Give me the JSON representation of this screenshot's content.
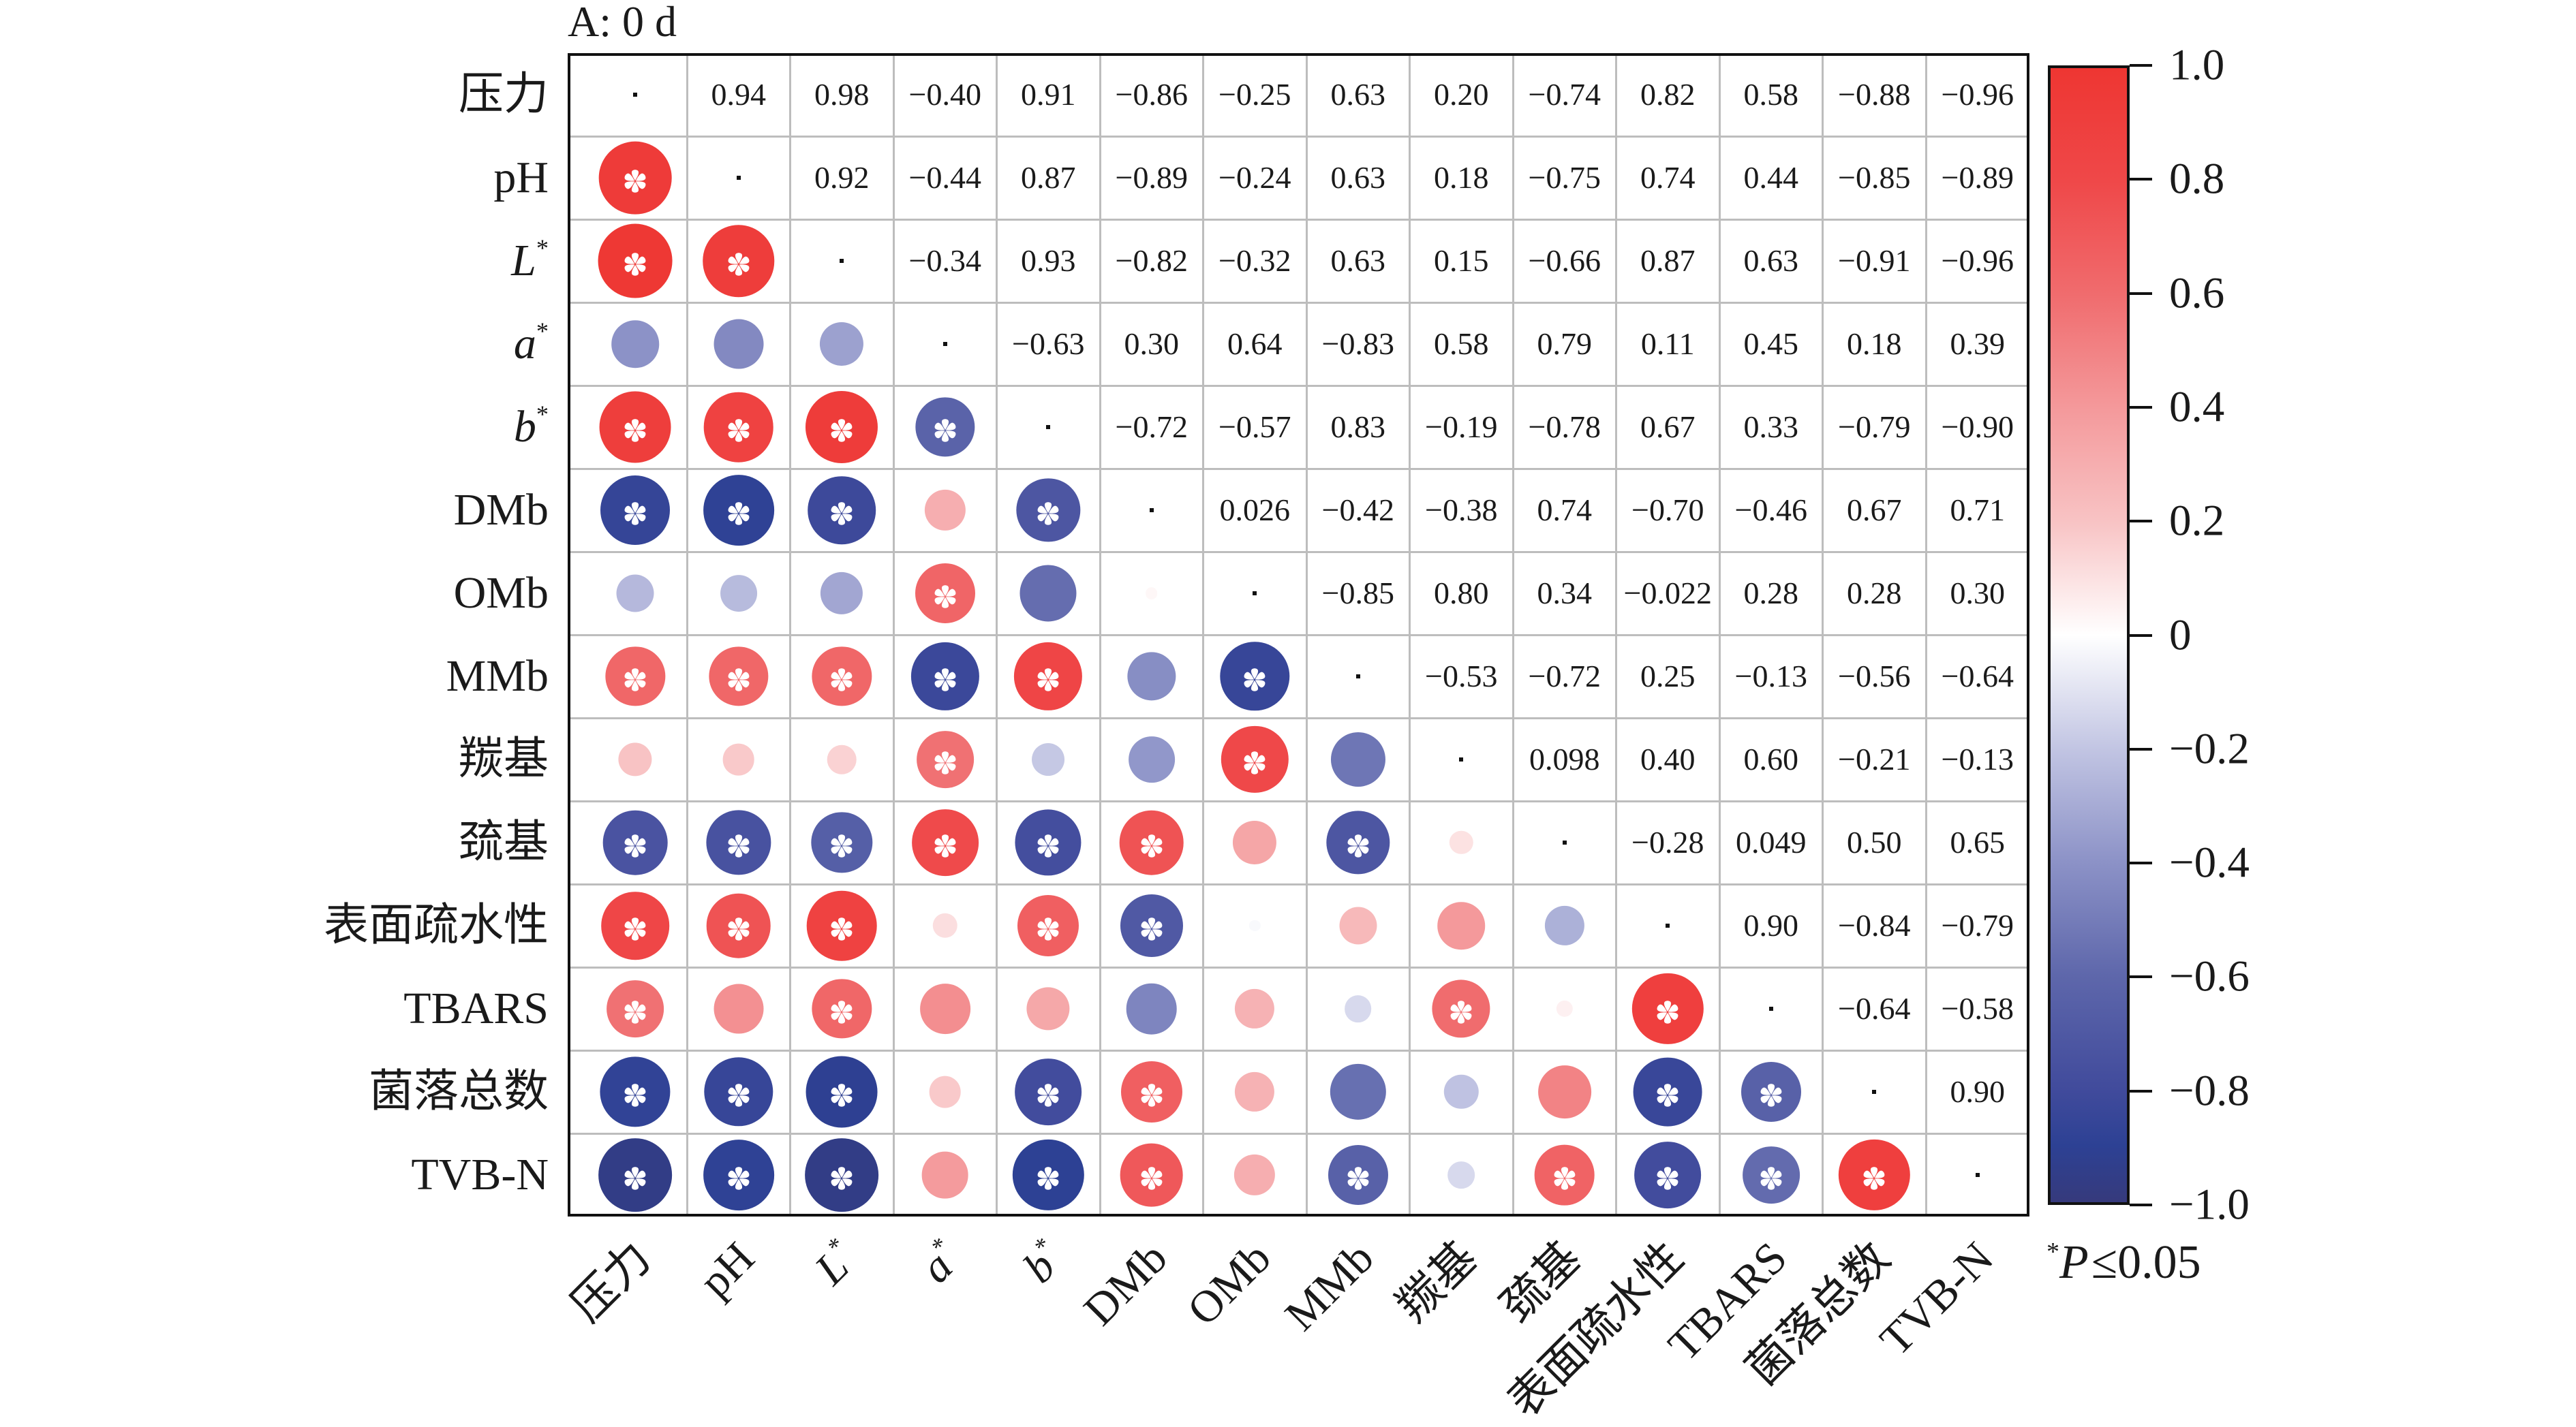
{
  "figure": {
    "panel_title": "A: 0 d",
    "legend": {
      "sup": "*",
      "p": "P",
      "text": "≤0.05"
    }
  },
  "chart_data": {
    "type": "heatmap",
    "title": "A: 0 d",
    "description": "Correlation matrix; lower triangle shown as circles (color and size by coefficient), upper triangle shows coefficient values, diagonal marked with a dot",
    "xlabel": "",
    "ylabel": "",
    "variables": [
      {
        "text": "压力"
      },
      {
        "text": "pH"
      },
      {
        "text": "L",
        "sup": "*",
        "italic": true
      },
      {
        "text": "a",
        "sup": "*",
        "italic": true
      },
      {
        "text": "b",
        "sup": "*",
        "italic": true
      },
      {
        "text": "DMb"
      },
      {
        "text": "OMb"
      },
      {
        "text": "MMb"
      },
      {
        "text": "羰基"
      },
      {
        "text": "巯基"
      },
      {
        "text": "表面疏水性"
      },
      {
        "text": "TBARS"
      },
      {
        "text": "菌落总数"
      },
      {
        "text": "TVB-N"
      }
    ],
    "upper_values": [
      [
        "0.94",
        "0.98",
        "−0.40",
        "0.91",
        "−0.86",
        "−0.25",
        "0.63",
        "0.20",
        "−0.74",
        "0.82",
        "0.58",
        "−0.88",
        "−0.96"
      ],
      [
        "0.92",
        "−0.44",
        "0.87",
        "−0.89",
        "−0.24",
        "0.63",
        "0.18",
        "−0.75",
        "0.74",
        "0.44",
        "−0.85",
        "−0.89"
      ],
      [
        "−0.34",
        "0.93",
        "−0.82",
        "−0.32",
        "0.63",
        "0.15",
        "−0.66",
        "0.87",
        "0.63",
        "−0.91",
        "−0.96"
      ],
      [
        "−0.63",
        "0.30",
        "0.64",
        "−0.83",
        "0.58",
        "0.79",
        "0.11",
        "0.45",
        "0.18",
        "0.39"
      ],
      [
        "−0.72",
        "−0.57",
        "0.83",
        "−0.19",
        "−0.78",
        "0.67",
        "0.33",
        "−0.79",
        "−0.90"
      ],
      [
        "0.026",
        "−0.42",
        "−0.38",
        "0.74",
        "−0.70",
        "−0.46",
        "0.67",
        "0.71"
      ],
      [
        "−0.85",
        "0.80",
        "0.34",
        "−0.022",
        "0.28",
        "0.28",
        "0.30"
      ],
      [
        "−0.53",
        "−0.72",
        "0.25",
        "−0.13",
        "−0.56",
        "−0.64"
      ],
      [
        "0.098",
        "0.40",
        "0.60",
        "−0.21",
        "−0.13"
      ],
      [
        "−0.28",
        "0.049",
        "0.50",
        "0.65"
      ],
      [
        "0.90",
        "−0.84",
        "−0.79"
      ],
      [
        "−0.64",
        "−0.58"
      ],
      [
        "0.90"
      ],
      []
    ],
    "significant_lower": [
      [],
      [
        1
      ],
      [
        1,
        1
      ],
      [
        0,
        0,
        0
      ],
      [
        1,
        1,
        1,
        1
      ],
      [
        1,
        1,
        1,
        0,
        1
      ],
      [
        0,
        0,
        0,
        1,
        0,
        0
      ],
      [
        1,
        1,
        1,
        1,
        1,
        0,
        1
      ],
      [
        0,
        0,
        0,
        1,
        0,
        0,
        1,
        0
      ],
      [
        1,
        1,
        1,
        1,
        1,
        1,
        0,
        1,
        0
      ],
      [
        1,
        1,
        1,
        0,
        1,
        1,
        0,
        0,
        0,
        0
      ],
      [
        1,
        0,
        1,
        0,
        0,
        0,
        0,
        0,
        1,
        0,
        1
      ],
      [
        1,
        1,
        1,
        0,
        1,
        1,
        0,
        0,
        0,
        0,
        1,
        1
      ],
      [
        1,
        1,
        1,
        0,
        1,
        1,
        0,
        1,
        0,
        1,
        1,
        1,
        1
      ]
    ],
    "diagonal_marker": "·",
    "significance_note": "*P≤0.05",
    "marker_size_rule": "circle area proportional to |r|",
    "colorbar": {
      "range": [
        -1.0,
        1.0
      ],
      "tick_values": [
        1.0,
        0.8,
        0.6,
        0.4,
        0.2,
        0,
        -0.2,
        -0.4,
        -0.6,
        -0.8,
        -1.0
      ],
      "tick_labels": [
        "1.0",
        "0.8",
        "0.6",
        "0.4",
        "0.2",
        "0",
        "−0.2",
        "−0.4",
        "−0.6",
        "−0.8",
        "−1.0"
      ],
      "placement": "right"
    },
    "colormap": [
      {
        "value": -1.0,
        "color": "#363A7C"
      },
      {
        "value": -0.9,
        "color": "#2D4194"
      },
      {
        "value": -0.8,
        "color": "#414B9C"
      },
      {
        "value": -0.6,
        "color": "#5E67AB"
      },
      {
        "value": -0.4,
        "color": "#8C92C7"
      },
      {
        "value": -0.2,
        "color": "#C2C5E3"
      },
      {
        "value": 0.0,
        "color": "#FFFFFF"
      },
      {
        "value": 0.2,
        "color": "#F8C3C4"
      },
      {
        "value": 0.4,
        "color": "#F4999B"
      },
      {
        "value": 0.6,
        "color": "#F06C6E"
      },
      {
        "value": 0.8,
        "color": "#EF4849"
      },
      {
        "value": 1.0,
        "color": "#EE3632"
      }
    ],
    "grid": true
  }
}
